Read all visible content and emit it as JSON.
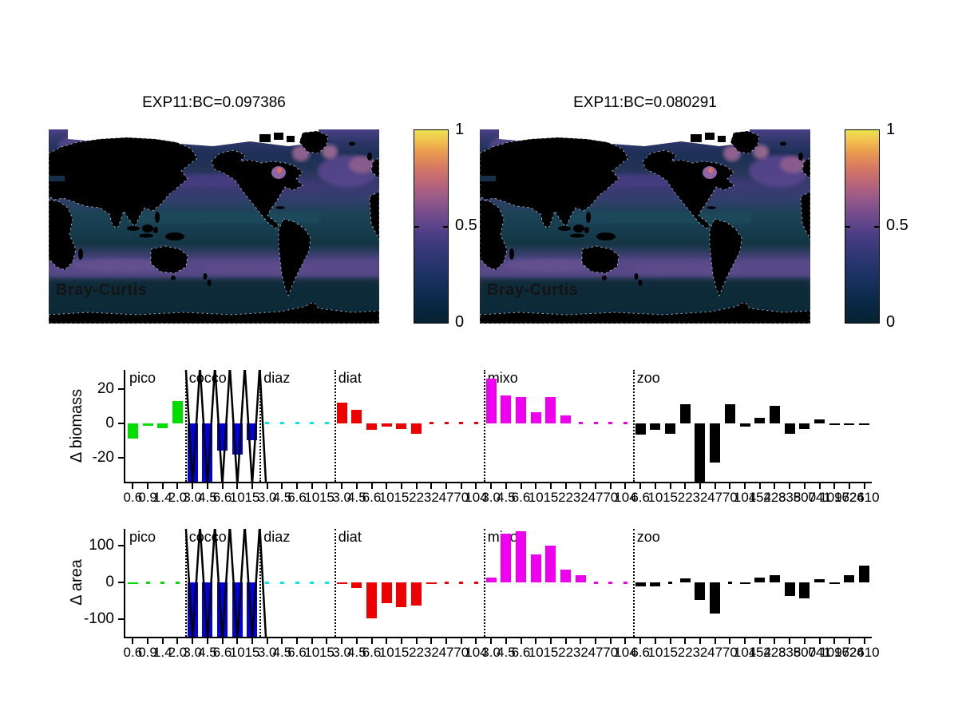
{
  "maps": [
    {
      "title": "EXP11:BC=0.097386",
      "watermark": "Bray-Curtis",
      "colorbar": {
        "tick_labels": [
          "1",
          "0.5",
          "0"
        ],
        "range": [
          0,
          1
        ]
      }
    },
    {
      "title": "EXP11:BC=0.080291",
      "watermark": "Bray-Curtis",
      "colorbar": {
        "tick_labels": [
          "1",
          "0.5",
          "0"
        ],
        "range": [
          0,
          1
        ]
      }
    }
  ],
  "colors": {
    "pico": "#00dd00",
    "cocco": "#0000e0",
    "diaz": "#00e8e8",
    "diat": "#ee0000",
    "mixo": "#ee00ee",
    "zoo": "#000000",
    "land": "#000000",
    "colormap_thermal": [
      "#052231",
      "#1b3263",
      "#4c3d86",
      "#95588a",
      "#d87a62",
      "#ece34f"
    ]
  },
  "chart_data": [
    {
      "type": "bar",
      "ylabel": "Δ biomass",
      "yticks": [
        20,
        0,
        -20
      ],
      "ylim": [
        -34,
        31
      ],
      "grid": false,
      "groups": [
        {
          "name": "pico",
          "color": "#00dd00",
          "sizes": [
            "0.6",
            "0.9",
            "1.4",
            "2.0"
          ],
          "values": [
            -9,
            -1.5,
            -3,
            13
          ]
        },
        {
          "name": "cocco",
          "color": "#0000e0",
          "sizes": [
            "3.0",
            "4.5",
            "6.6",
            "10",
            "15"
          ],
          "values": [
            -40,
            -60,
            -16,
            -18,
            -10
          ],
          "overflow_line": true
        },
        {
          "name": "diaz",
          "color": "#00e8e8",
          "sizes": [
            "3.0",
            "4.5",
            "6.6",
            "10",
            "15"
          ],
          "values": [
            0,
            0,
            0,
            0,
            0
          ]
        },
        {
          "name": "diat",
          "color": "#ee0000",
          "sizes": [
            "3.0",
            "4.5",
            "6.6",
            "10",
            "15",
            "22",
            "32",
            "47",
            "70",
            "104"
          ],
          "values": [
            12,
            8,
            -4,
            -2,
            -3.5,
            -6,
            0,
            0,
            0,
            0
          ]
        },
        {
          "name": "mixo",
          "color": "#ee00ee",
          "sizes": [
            "3.0",
            "4.5",
            "6.6",
            "10",
            "15",
            "22",
            "32",
            "47",
            "70",
            "104"
          ],
          "values": [
            26,
            16,
            15,
            6.5,
            15,
            4.5,
            0,
            0,
            0,
            0
          ]
        },
        {
          "name": "zoo",
          "color": "#000000",
          "sizes": [
            "6.6",
            "10",
            "15",
            "22",
            "32",
            "47",
            "70",
            "104",
            "154",
            "228",
            "338",
            "500",
            "741",
            "1097",
            "1626",
            "2410"
          ],
          "values": [
            -6.5,
            -4,
            -6,
            11,
            -40,
            -23,
            11,
            -2,
            3,
            10,
            -6,
            -3.5,
            2,
            -0.5,
            -0.5,
            -0.5
          ]
        }
      ]
    },
    {
      "type": "bar",
      "ylabel": "Δ area",
      "yticks": [
        100,
        0,
        -100
      ],
      "ylim": [
        -148,
        146
      ],
      "grid": false,
      "groups": [
        {
          "name": "pico",
          "color": "#00dd00",
          "sizes": [
            "0.6",
            "0.9",
            "1.4",
            "2.0"
          ],
          "values": [
            -3,
            0,
            0,
            0
          ]
        },
        {
          "name": "cocco",
          "color": "#0000e0",
          "sizes": [
            "3.0",
            "4.5",
            "6.6",
            "10",
            "15"
          ],
          "values": [
            -200,
            -200,
            -200,
            -200,
            -200
          ],
          "overflow_line": true
        },
        {
          "name": "diaz",
          "color": "#00e8e8",
          "sizes": [
            "3.0",
            "4.5",
            "6.6",
            "10",
            "15"
          ],
          "values": [
            0,
            0,
            0,
            0,
            0
          ]
        },
        {
          "name": "diat",
          "color": "#ee0000",
          "sizes": [
            "3.0",
            "4.5",
            "6.6",
            "10",
            "15",
            "22",
            "32",
            "47",
            "70",
            "104"
          ],
          "values": [
            -5,
            -15,
            -98,
            -56,
            -67,
            -62,
            -4,
            -2,
            0,
            0
          ]
        },
        {
          "name": "mixo",
          "color": "#ee00ee",
          "sizes": [
            "3.0",
            "4.5",
            "6.6",
            "10",
            "15",
            "22",
            "32",
            "47",
            "70",
            "104"
          ],
          "values": [
            14,
            132,
            139,
            77,
            101,
            35,
            20,
            0,
            0,
            0
          ]
        },
        {
          "name": "zoo",
          "color": "#000000",
          "sizes": [
            "6.6",
            "10",
            "15",
            "22",
            "32",
            "47",
            "70",
            "104",
            "154",
            "228",
            "338",
            "500",
            "741",
            "1097",
            "1626",
            "2410"
          ],
          "values": [
            -10,
            -10,
            0,
            12,
            -48,
            -84,
            0,
            -4,
            14,
            20,
            -38,
            -43,
            8,
            -3,
            20,
            46
          ]
        }
      ]
    }
  ]
}
